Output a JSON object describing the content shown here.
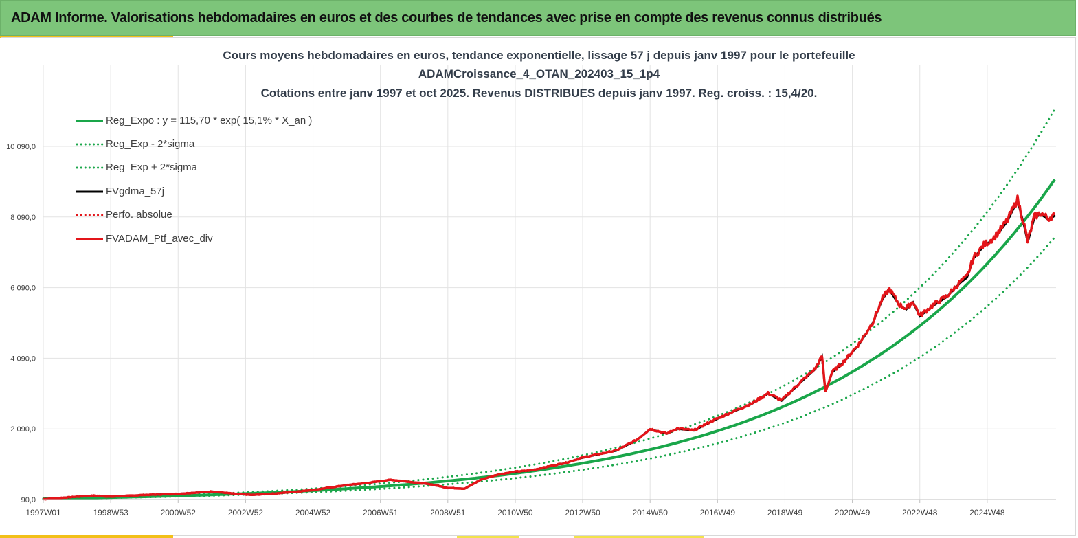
{
  "banner": {
    "title": "ADAM Informe. Valorisations hebdomadaires en euros et des courbes de tendances avec prise en compte des revenus connus distribués"
  },
  "colors": {
    "banner_bg": "#7dc57a",
    "accent": "#f2c018",
    "reg_green": "#1aa64a",
    "red": "#e3151a",
    "black": "#000000",
    "grid": "#e3e3e3"
  },
  "chart_data": {
    "type": "line",
    "title_lines": [
      "Cours moyens hebdomadaires  en euros, tendance exponentielle, lissage 57 j depuis janv 1997 pour le portefeuille",
      "ADAMCroissance_4_OTAN_202403_15_1p4",
      "Cotations  entre janv 1997 et oct 2025. Revenus DISTRIBUES depuis janv 1997. Reg. croiss. : 15,4/20."
    ],
    "xlabel": "",
    "ylabel": "",
    "x_range_years": [
      1997.0,
      2025.8
    ],
    "ylim": [
      90,
      11000
    ],
    "y_ticks": [
      {
        "value": 90,
        "label": "90,0"
      },
      {
        "value": 2090,
        "label": "2 090,0"
      },
      {
        "value": 4090,
        "label": "4 090,0"
      },
      {
        "value": 6090,
        "label": "6 090,0"
      },
      {
        "value": 8090,
        "label": "8 090,0"
      },
      {
        "value": 10090,
        "label": "10 090,0"
      }
    ],
    "x_ticks": [
      {
        "year": 1997.0,
        "label": "1997W01"
      },
      {
        "year": 1999.0,
        "label": "1998W53"
      },
      {
        "year": 2001.0,
        "label": "2000W52"
      },
      {
        "year": 2003.0,
        "label": "2002W52"
      },
      {
        "year": 2005.0,
        "label": "2004W52"
      },
      {
        "year": 2007.0,
        "label": "2006W51"
      },
      {
        "year": 2009.0,
        "label": "2008W51"
      },
      {
        "year": 2011.0,
        "label": "2010W50"
      },
      {
        "year": 2013.0,
        "label": "2012W50"
      },
      {
        "year": 2015.0,
        "label": "2014W50"
      },
      {
        "year": 2017.0,
        "label": "2016W49"
      },
      {
        "year": 2019.0,
        "label": "2018W49"
      },
      {
        "year": 2021.0,
        "label": "2020W49"
      },
      {
        "year": 2023.0,
        "label": "2022W48"
      },
      {
        "year": 2025.0,
        "label": "2024W48"
      }
    ],
    "grid": true,
    "legend_position": "top-left",
    "regression": {
      "a": 115.7,
      "rate_pct": 15.1,
      "sigma_band_factor": 1.22
    },
    "series": [
      {
        "name": "Reg_Expo : y = 115,70 * exp( 15,1% *  X_an )",
        "color": "#1aa64a",
        "style": "solid",
        "width": 4,
        "kind": "reg"
      },
      {
        "name": "Reg_Exp - 2*sigma",
        "color": "#1aa64a",
        "style": "dotted",
        "width": 3,
        "kind": "reg_low"
      },
      {
        "name": "Reg_Exp + 2*sigma",
        "color": "#1aa64a",
        "style": "dotted",
        "width": 3,
        "kind": "reg_high"
      },
      {
        "name": "FVgdma_57j",
        "color": "#000000",
        "style": "solid",
        "width": 3,
        "kind": "smooth"
      },
      {
        "name": "Perfo. absolue",
        "color": "#e3151a",
        "style": "dotted",
        "width": 3,
        "kind": "perf"
      },
      {
        "name": "FVADAM_Ptf_avec_div",
        "color": "#e3151a",
        "style": "solid",
        "width": 4,
        "kind": "actual"
      }
    ],
    "actual_points": [
      [
        1997.0,
        100
      ],
      [
        1998.0,
        170
      ],
      [
        1998.5,
        200
      ],
      [
        1999.0,
        170
      ],
      [
        2000.0,
        220
      ],
      [
        2001.0,
        250
      ],
      [
        2002.0,
        320
      ],
      [
        2002.7,
        250
      ],
      [
        2003.2,
        220
      ],
      [
        2004.0,
        270
      ],
      [
        2005.0,
        360
      ],
      [
        2006.0,
        500
      ],
      [
        2006.6,
        560
      ],
      [
        2007.3,
        650
      ],
      [
        2007.8,
        600
      ],
      [
        2008.5,
        520
      ],
      [
        2009.0,
        420
      ],
      [
        2009.5,
        400
      ],
      [
        2010.0,
        660
      ],
      [
        2010.5,
        800
      ],
      [
        2011.0,
        880
      ],
      [
        2011.5,
        920
      ],
      [
        2012.0,
        1030
      ],
      [
        2012.5,
        1130
      ],
      [
        2013.0,
        1280
      ],
      [
        2014.0,
        1480
      ],
      [
        2014.6,
        1780
      ],
      [
        2015.0,
        2090
      ],
      [
        2015.5,
        1960
      ],
      [
        2015.8,
        2100
      ],
      [
        2016.3,
        2050
      ],
      [
        2016.8,
        2300
      ],
      [
        2017.5,
        2600
      ],
      [
        2018.0,
        2800
      ],
      [
        2018.5,
        3100
      ],
      [
        2018.9,
        2900
      ],
      [
        2019.5,
        3450
      ],
      [
        2019.9,
        3800
      ],
      [
        2020.1,
        4150
      ],
      [
        2020.2,
        3150
      ],
      [
        2020.4,
        3700
      ],
      [
        2020.7,
        3950
      ],
      [
        2021.2,
        4500
      ],
      [
        2021.6,
        5100
      ],
      [
        2021.9,
        5800
      ],
      [
        2022.1,
        6050
      ],
      [
        2022.4,
        5600
      ],
      [
        2022.6,
        5500
      ],
      [
        2022.8,
        5700
      ],
      [
        2023.0,
        5300
      ],
      [
        2023.4,
        5600
      ],
      [
        2023.8,
        5850
      ],
      [
        2024.2,
        6250
      ],
      [
        2024.4,
        6400
      ],
      [
        2024.6,
        6950
      ],
      [
        2024.9,
        7300
      ],
      [
        2025.2,
        7500
      ],
      [
        2025.6,
        8000
      ],
      [
        2025.9,
        8600
      ],
      [
        2026.1,
        7850
      ],
      [
        2026.2,
        7400
      ],
      [
        2026.4,
        8100
      ],
      [
        2026.6,
        8200
      ],
      [
        2026.8,
        8050
      ],
      [
        2027.0,
        8150
      ]
    ]
  }
}
